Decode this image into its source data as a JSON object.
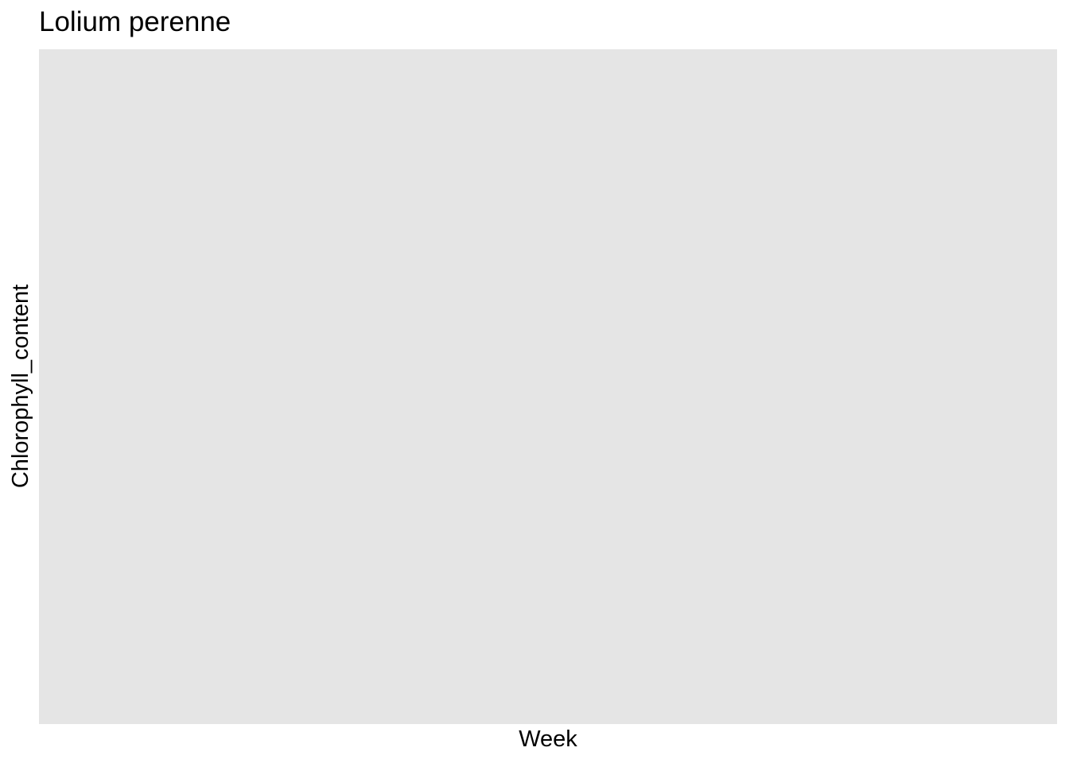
{
  "chart_data": {
    "type": "line",
    "title": "Lolium perenne",
    "xlabel": "Week",
    "ylabel": "Chlorophyll_content",
    "series": [],
    "x": [],
    "grid": false,
    "panel_background": "#e5e5e5"
  }
}
